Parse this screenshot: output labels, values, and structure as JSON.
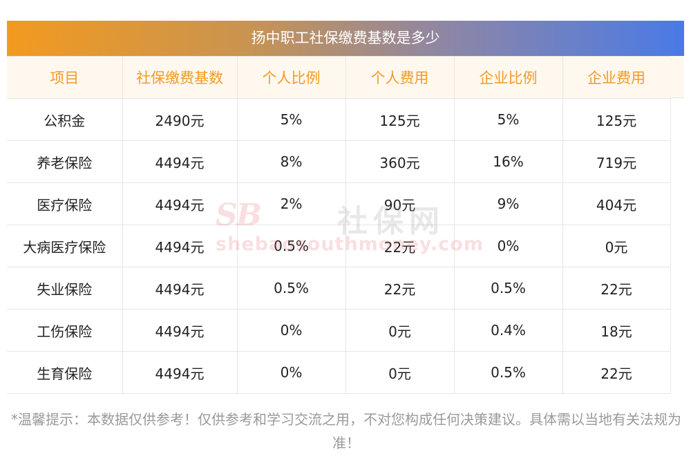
{
  "title": "扬中职工社保缴费基数是多少",
  "table": {
    "headers": [
      "项目",
      "社保缴费基数",
      "个人比例",
      "个人费用",
      "企业比例",
      "企业费用"
    ],
    "rows": [
      [
        "公积金",
        "2490元",
        "5%",
        "125元",
        "5%",
        "125元"
      ],
      [
        "养老保险",
        "4494元",
        "8%",
        "360元",
        "16%",
        "719元"
      ],
      [
        "医疗保险",
        "4494元",
        "2%",
        "90元",
        "9%",
        "404元"
      ],
      [
        "大病医疗保险",
        "4494元",
        "0.5%",
        "22元",
        "0%",
        "0元"
      ],
      [
        "失业保险",
        "4494元",
        "0.5%",
        "22元",
        "0.5%",
        "22元"
      ],
      [
        "工伤保险",
        "4494元",
        "0%",
        "0元",
        "0.4%",
        "18元"
      ],
      [
        "生育保险",
        "4494元",
        "0%",
        "0元",
        "0.5%",
        "22元"
      ]
    ]
  },
  "watermark": {
    "logo": "SB",
    "name": "社保网",
    "url": "shebaosouthmoney.com"
  },
  "footnote": "*温馨提示：本数据仅供参考！仅供参考和学习交流之用，不对您构成任何决策建议。具体需以当地有关法规为准！"
}
